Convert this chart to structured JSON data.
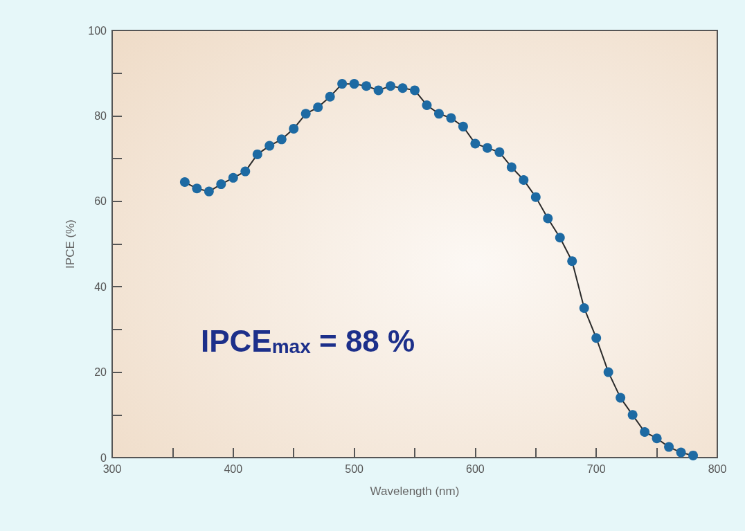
{
  "chart_data": {
    "type": "line",
    "xlabel": "Wavelength (nm)",
    "ylabel": "IPCE (%)",
    "x": [
      360,
      370,
      380,
      390,
      400,
      410,
      420,
      430,
      440,
      450,
      460,
      470,
      480,
      490,
      500,
      510,
      520,
      530,
      540,
      550,
      560,
      570,
      580,
      590,
      600,
      610,
      620,
      630,
      640,
      650,
      660,
      670,
      680,
      690,
      700,
      710,
      720,
      730,
      740,
      750,
      760,
      770,
      780
    ],
    "series": [
      {
        "color": "#1d6aa3",
        "values": [
          64.5,
          63,
          62.3,
          64,
          65.5,
          67,
          71,
          73,
          74.5,
          77,
          80.5,
          82,
          84.5,
          87.5,
          87.5,
          87,
          86,
          87,
          86.5,
          86,
          82.5,
          80.5,
          79.5,
          77.5,
          73.5,
          72.5,
          71.5,
          68,
          65,
          61,
          56,
          51.5,
          46,
          35,
          28,
          20,
          14,
          10,
          6,
          4.5,
          2.5,
          1.2,
          0.5
        ]
      }
    ],
    "xlim": [
      300,
      800
    ],
    "xticks": [
      300,
      {
        "value": 350,
        "label": null
      },
      400,
      {
        "value": 450,
        "label": null
      },
      500,
      {
        "value": 550,
        "label": null
      },
      600,
      {
        "value": 650,
        "label": null
      },
      700,
      {
        "value": 750,
        "label": null
      },
      800
    ],
    "ylim": [
      0,
      100
    ],
    "yticks": [
      0,
      {
        "value": 10,
        "label": null
      },
      20,
      {
        "value": 30,
        "label": null
      },
      40,
      {
        "value": 50,
        "label": null
      },
      60,
      {
        "value": 70,
        "label": null
      },
      80,
      {
        "value": 90,
        "label": null
      },
      100
    ],
    "marker": "circle",
    "line_style": "solid",
    "grid": false,
    "annotations": [
      "IPCE$_{max}$ = 88 %"
    ]
  }
}
